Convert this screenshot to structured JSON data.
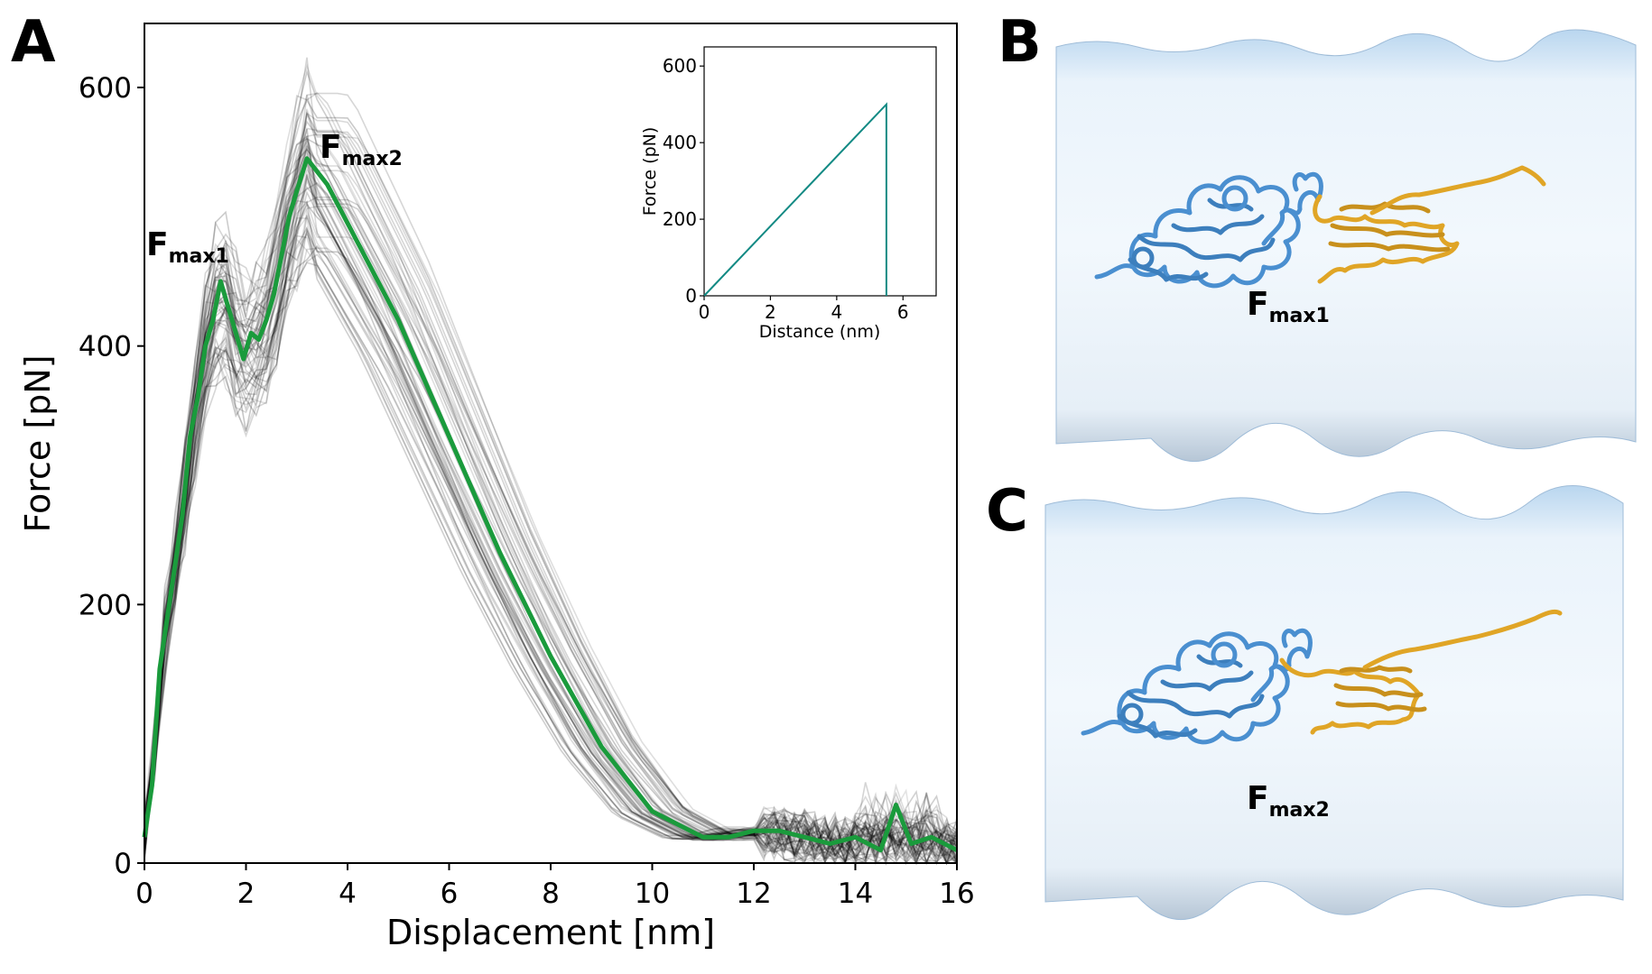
{
  "panels": {
    "a": "A",
    "b": "B",
    "c": "C"
  },
  "annotations": {
    "fmax1": {
      "main": "F",
      "sub": "max1"
    },
    "fmax2": {
      "main": "F",
      "sub": "max2"
    }
  },
  "colors": {
    "highlight": "#1a9b3c",
    "ensemble": "#000000",
    "inset_line": "#138a84",
    "protein_blue": "#4a8fd0",
    "protein_gold": "#e0a526",
    "membrane": "#e4f0fa"
  },
  "chart_data": [
    {
      "type": "line",
      "xlabel": "Displacement [nm]",
      "ylabel": "Force [pN]",
      "xlim": [
        0,
        16
      ],
      "ylim": [
        0,
        600
      ],
      "xticks": [
        "0",
        "2",
        "4",
        "6",
        "8",
        "10",
        "12",
        "14",
        "16"
      ],
      "yticks": [
        "0",
        "200",
        "400",
        "600"
      ],
      "grid": false,
      "ensemble_count": 60,
      "series": [
        {
          "x": [
            0,
            0.15,
            0.3,
            0.45,
            0.6,
            0.75,
            0.9,
            1.05,
            1.2,
            1.35,
            1.5,
            1.65,
            1.8,
            1.95,
            2.1,
            2.25,
            2.4,
            2.55,
            2.7,
            2.85,
            3.0,
            3.2,
            3.6,
            4.0,
            5.0,
            6.0,
            7.0,
            8.0,
            9.0,
            10.0,
            11.0,
            11.5,
            12.0,
            12.5,
            13.0,
            13.5,
            14.0,
            14.5,
            14.8,
            15.1,
            15.5,
            16.0
          ],
          "y": [
            20,
            60,
            150,
            190,
            230,
            270,
            330,
            360,
            400,
            420,
            450,
            430,
            410,
            390,
            410,
            405,
            420,
            440,
            470,
            500,
            520,
            545,
            525,
            495,
            420,
            330,
            240,
            160,
            90,
            40,
            20,
            20,
            25,
            25,
            20,
            15,
            20,
            10,
            45,
            15,
            20,
            10
          ]
        }
      ],
      "annotations": [
        {
          "label": "F max1",
          "x": 1.4,
          "y": 460
        },
        {
          "label": "F max2",
          "x": 3.2,
          "y": 545
        }
      ]
    },
    {
      "type": "line",
      "xlabel": "Distance (nm)",
      "ylabel": "Force (pN)",
      "xlim": [
        0,
        7
      ],
      "ylim": [
        0,
        650
      ],
      "xticks": [
        "0",
        "2",
        "4",
        "6"
      ],
      "yticks": [
        "0",
        "200",
        "400",
        "600"
      ],
      "grid": false,
      "series": [
        {
          "x": [
            0,
            5.5,
            5.5
          ],
          "y": [
            0,
            500,
            0
          ]
        }
      ]
    }
  ]
}
